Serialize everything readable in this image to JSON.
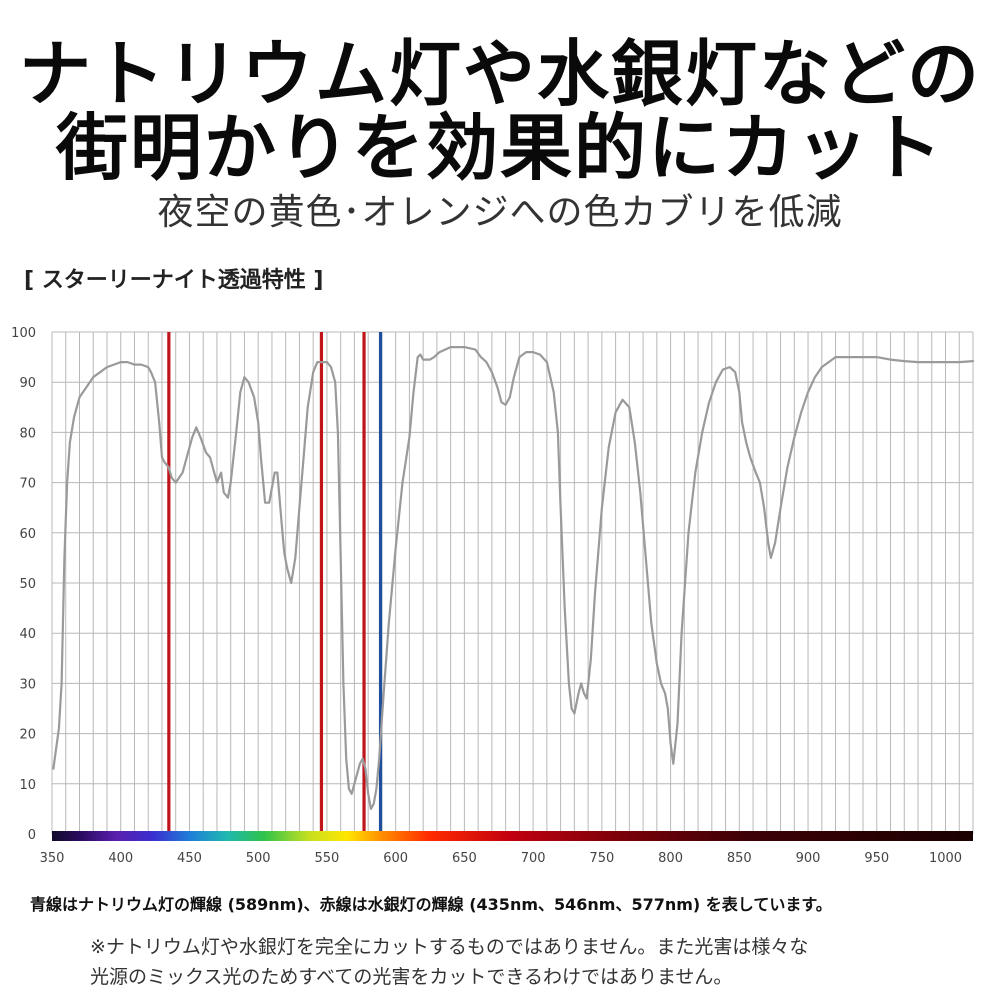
{
  "headline": {
    "line1": "ナトリウム灯や水銀灯などの",
    "line2": "街明かりを効果的にカット"
  },
  "subheadline": "夜空の黄色･オレンジへの色カブリを低減",
  "section_label": "[ スターリーナイト透過特性 ]",
  "caption": "青線はナトリウム灯の輝線 (589nm)、赤線は水銀灯の輝線 (435nm、546nm、577nm) を表しています。",
  "note": {
    "line1": "※ナトリウム灯や水銀灯を完全にカットするものではありません。また光害は様々な",
    "line2": "光源のミックス光のためすべての光害をカットできるわけではありません。"
  },
  "colors": {
    "curve": "#9a9a9a",
    "mercury_lines": "#c0141b",
    "sodium_line": "#1f4e9c",
    "grid": "#b8b8b8"
  },
  "chart_data": {
    "type": "line",
    "title": "",
    "xlabel": "",
    "ylabel": "",
    "xlim": [
      350,
      1020
    ],
    "ylim": [
      0,
      100
    ],
    "x_ticks": [
      350,
      400,
      450,
      500,
      550,
      600,
      650,
      700,
      750,
      800,
      850,
      900,
      950,
      1000
    ],
    "y_ticks": [
      0,
      10,
      20,
      30,
      40,
      50,
      60,
      70,
      80,
      90,
      100
    ],
    "grid": true,
    "spectrum_bar": true,
    "series": [
      {
        "values": [
          [
            351,
            13
          ],
          [
            353,
            17
          ],
          [
            355,
            21
          ],
          [
            357,
            30
          ],
          [
            359,
            55
          ],
          [
            361,
            70
          ],
          [
            363,
            78
          ],
          [
            366,
            83
          ],
          [
            370,
            87
          ],
          [
            375,
            89
          ],
          [
            380,
            91
          ],
          [
            385,
            92
          ],
          [
            390,
            93
          ],
          [
            395,
            93.5
          ],
          [
            400,
            94
          ],
          [
            405,
            94
          ],
          [
            410,
            93.5
          ],
          [
            415,
            93.5
          ],
          [
            420,
            93
          ],
          [
            422,
            92
          ],
          [
            425,
            90
          ],
          [
            428,
            82
          ],
          [
            430,
            75
          ],
          [
            432,
            74
          ],
          [
            435,
            73
          ],
          [
            437,
            71
          ],
          [
            440,
            70
          ],
          [
            445,
            72
          ],
          [
            448,
            75
          ],
          [
            452,
            79
          ],
          [
            455,
            81
          ],
          [
            458,
            79
          ],
          [
            462,
            76
          ],
          [
            465,
            75
          ],
          [
            468,
            72
          ],
          [
            470,
            70
          ],
          [
            473,
            72
          ],
          [
            475,
            68
          ],
          [
            478,
            67
          ],
          [
            480,
            70
          ],
          [
            484,
            80
          ],
          [
            487,
            88
          ],
          [
            490,
            91
          ],
          [
            493,
            90
          ],
          [
            497,
            87
          ],
          [
            500,
            82
          ],
          [
            502,
            75
          ],
          [
            505,
            66
          ],
          [
            508,
            66
          ],
          [
            512,
            72
          ],
          [
            514,
            72
          ],
          [
            517,
            62
          ],
          [
            519,
            56
          ],
          [
            521,
            53
          ],
          [
            524,
            50
          ],
          [
            527,
            55
          ],
          [
            530,
            65
          ],
          [
            533,
            75
          ],
          [
            536,
            85
          ],
          [
            540,
            92
          ],
          [
            543,
            94
          ],
          [
            547,
            94
          ],
          [
            550,
            94
          ],
          [
            553,
            93
          ],
          [
            556,
            90
          ],
          [
            558,
            80
          ],
          [
            560,
            55
          ],
          [
            562,
            30
          ],
          [
            564,
            15
          ],
          [
            566,
            9
          ],
          [
            568,
            8
          ],
          [
            570,
            10
          ],
          [
            574,
            14
          ],
          [
            576,
            15
          ],
          [
            578,
            13
          ],
          [
            580,
            8
          ],
          [
            582,
            5
          ],
          [
            584,
            6
          ],
          [
            586,
            9
          ],
          [
            588,
            15
          ],
          [
            591,
            27
          ],
          [
            595,
            42
          ],
          [
            600,
            57
          ],
          [
            605,
            70
          ],
          [
            610,
            79
          ],
          [
            613,
            88
          ],
          [
            616,
            95
          ],
          [
            618,
            95.5
          ],
          [
            620,
            94.5
          ],
          [
            625,
            94.5
          ],
          [
            628,
            95
          ],
          [
            632,
            96
          ],
          [
            640,
            97
          ],
          [
            650,
            97
          ],
          [
            658,
            96.5
          ],
          [
            662,
            95
          ],
          [
            666,
            94
          ],
          [
            670,
            92
          ],
          [
            674,
            89
          ],
          [
            677,
            86
          ],
          [
            680,
            85.5
          ],
          [
            683,
            87
          ],
          [
            686,
            91
          ],
          [
            690,
            95
          ],
          [
            695,
            96
          ],
          [
            700,
            96
          ],
          [
            705,
            95.5
          ],
          [
            710,
            94
          ],
          [
            715,
            88
          ],
          [
            718,
            80
          ],
          [
            720,
            65
          ],
          [
            723,
            45
          ],
          [
            726,
            30
          ],
          [
            728,
            25
          ],
          [
            730,
            24
          ],
          [
            733,
            28
          ],
          [
            735,
            30
          ],
          [
            737,
            28
          ],
          [
            739,
            27
          ],
          [
            742,
            35
          ],
          [
            745,
            48
          ],
          [
            750,
            65
          ],
          [
            755,
            77
          ],
          [
            760,
            84
          ],
          [
            765,
            86.5
          ],
          [
            770,
            85
          ],
          [
            774,
            78
          ],
          [
            778,
            68
          ],
          [
            782,
            55
          ],
          [
            786,
            42
          ],
          [
            790,
            34
          ],
          [
            793,
            30
          ],
          [
            796,
            28
          ],
          [
            798,
            25
          ],
          [
            800,
            18
          ],
          [
            802,
            14
          ],
          [
            805,
            22
          ],
          [
            808,
            40
          ],
          [
            813,
            60
          ],
          [
            818,
            72
          ],
          [
            823,
            80
          ],
          [
            828,
            86
          ],
          [
            833,
            90
          ],
          [
            838,
            92.5
          ],
          [
            843,
            93
          ],
          [
            847,
            92
          ],
          [
            850,
            88
          ],
          [
            852,
            82
          ],
          [
            855,
            78
          ],
          [
            858,
            75
          ],
          [
            862,
            72
          ],
          [
            865,
            70
          ],
          [
            868,
            65
          ],
          [
            871,
            58
          ],
          [
            873,
            55
          ],
          [
            876,
            58
          ],
          [
            880,
            65
          ],
          [
            885,
            73
          ],
          [
            890,
            79
          ],
          [
            895,
            84
          ],
          [
            900,
            88
          ],
          [
            905,
            91
          ],
          [
            910,
            93
          ],
          [
            915,
            94
          ],
          [
            920,
            95
          ],
          [
            930,
            95
          ],
          [
            940,
            95
          ],
          [
            950,
            95
          ],
          [
            960,
            94.5
          ],
          [
            970,
            94.2
          ],
          [
            980,
            94
          ],
          [
            990,
            94
          ],
          [
            1000,
            94
          ],
          [
            1010,
            94
          ],
          [
            1020,
            94.2
          ]
        ]
      }
    ],
    "reference_lines": [
      {
        "x": 435,
        "kind": "mercury"
      },
      {
        "x": 546,
        "kind": "mercury"
      },
      {
        "x": 577,
        "kind": "mercury"
      },
      {
        "x": 589,
        "kind": "sodium"
      }
    ]
  }
}
